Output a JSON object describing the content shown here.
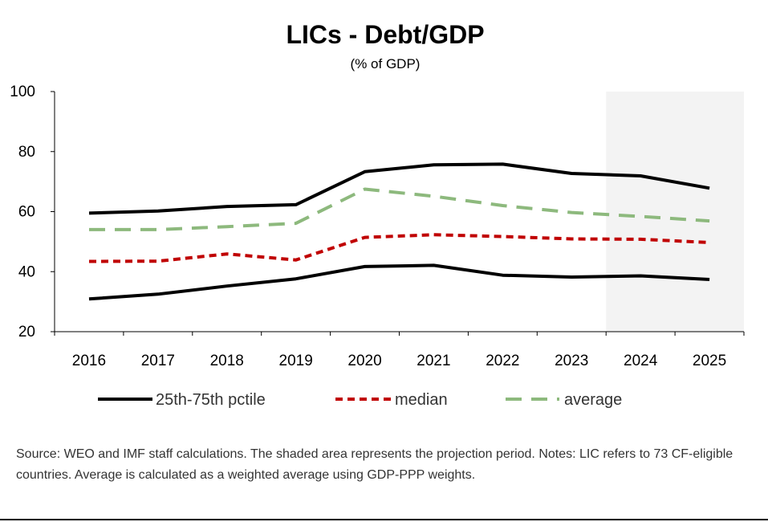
{
  "chart_data": {
    "type": "line",
    "title": "LICs - Debt/GDP",
    "subtitle": "(% of GDP)",
    "categories": [
      "2016",
      "2017",
      "2018",
      "2019",
      "2020",
      "2021",
      "2022",
      "2023",
      "2024",
      "2025"
    ],
    "ylim": [
      20,
      100
    ],
    "yticks": [
      20,
      40,
      60,
      80,
      100
    ],
    "grid": false,
    "projection_shaded_from": "2024",
    "series": [
      {
        "name": "25th-75th pctile",
        "role": "p75",
        "color": "#000000",
        "dash": "solid",
        "values": [
          59.5,
          60.2,
          61.7,
          62.3,
          73.3,
          75.6,
          75.8,
          72.7,
          71.9,
          67.8
        ]
      },
      {
        "name": "25th-75th pctile",
        "role": "p25",
        "color": "#000000",
        "dash": "solid",
        "values": [
          30.9,
          32.5,
          35.2,
          37.6,
          41.7,
          42.1,
          38.8,
          38.2,
          38.6,
          37.4
        ]
      },
      {
        "name": "median",
        "role": "median",
        "color": "#C00000",
        "dash": "dotted",
        "values": [
          43.4,
          43.5,
          45.9,
          43.9,
          51.4,
          52.3,
          51.7,
          50.9,
          50.8,
          49.7
        ]
      },
      {
        "name": "average",
        "role": "average",
        "color": "#8DB97D",
        "dash": "dashed",
        "values": [
          54.0,
          54.0,
          55.0,
          56.1,
          67.5,
          65.1,
          62.0,
          59.7,
          58.4,
          56.9
        ]
      }
    ],
    "legend": {
      "placement": "bottom",
      "items": [
        {
          "label": "25th-75th pctile",
          "color": "#000000",
          "dash": "solid"
        },
        {
          "label": "median",
          "color": "#C00000",
          "dash": "dotted"
        },
        {
          "label": "average",
          "color": "#8DB97D",
          "dash": "dashed"
        }
      ]
    }
  },
  "source_note": "Source: WEO and IMF staff calculations. The shaded area represents the projection period. Notes: LIC refers to 73 CF-eligible countries. Average is calculated as a weighted average using GDP-PPP weights."
}
